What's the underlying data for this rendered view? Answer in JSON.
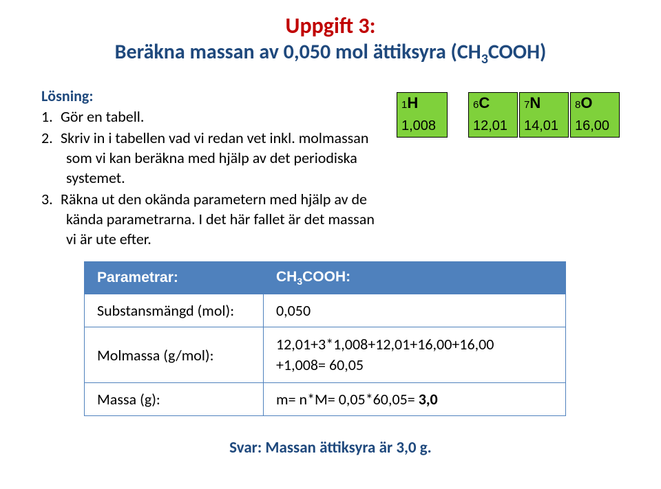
{
  "title": {
    "line1": "Uppgift 3:",
    "line2_pre": "Beräkna massan av 0,050 mol ättiksyra (CH",
    "line2_sub": "3",
    "line2_post": "COOH)"
  },
  "solution_heading": "Lösning:",
  "steps": [
    {
      "num": "1.",
      "text": "Gör en tabell."
    },
    {
      "num": "2.",
      "text": "Skriv in i tabellen vad vi redan vet inkl. molmassan som vi kan beräkna med hjälp av det periodiska systemet."
    },
    {
      "num": "3.",
      "text": "Räkna ut den okända parametern med hjälp av de kända parametrarna. I det här fallet är det massan vi är ute efter."
    }
  ],
  "periodic": {
    "bg_color": "#7fd13b",
    "border_color": "#000000",
    "cells": [
      {
        "z": "1",
        "sym": "H",
        "mass": "1,008"
      },
      {
        "z": "6",
        "sym": "C",
        "mass": "12,01"
      },
      {
        "z": "7",
        "sym": "N",
        "mass": "14,01"
      },
      {
        "z": "8",
        "sym": "O",
        "mass": "16,00"
      }
    ]
  },
  "table": {
    "header_bg": "#4f81bd",
    "border_color": "#4f81bd",
    "col1_header": "Parametrar:",
    "col2_header_pre": "CH",
    "col2_header_sub": "3",
    "col2_header_post": "COOH:",
    "rows": [
      {
        "label": "Substansmängd (mol):",
        "value": "0,050"
      },
      {
        "label": "Molmassa (g/mol):",
        "value_line1": "12,01+3*1,008+12,01+16,00+16,00",
        "value_line2": "+1,008= 60,05"
      },
      {
        "label": "Massa (g):",
        "value": "m= n*M= 0,05*60,05= ",
        "value_bold": "3,0"
      }
    ]
  },
  "answer": "Svar: Massan ättiksyra är 3,0 g."
}
